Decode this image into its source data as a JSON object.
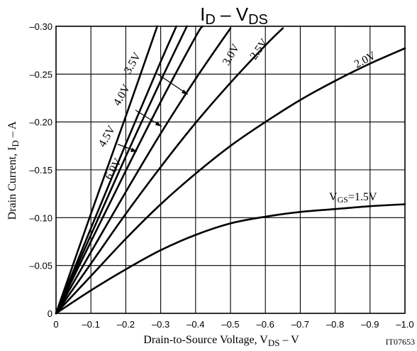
{
  "chart_data": {
    "type": "line",
    "title": {
      "main": "I",
      "sub1": "D",
      "mid": " – V",
      "sub2": "DS"
    },
    "xlabel": {
      "main": "Drain-to-Source Voltage, V",
      "sub": "DS",
      "tail": " – V"
    },
    "ylabel": {
      "main": "Drain Current, I",
      "sub": "D",
      "tail": " – A"
    },
    "figure_id": "IT07653",
    "xlim": [
      0,
      -1.0
    ],
    "ylim": [
      0,
      -0.3
    ],
    "grid": true,
    "xticks": [
      {
        "v": 0,
        "label": "0"
      },
      {
        "v": -0.1,
        "label": "–0.1"
      },
      {
        "v": -0.2,
        "label": "–0.2"
      },
      {
        "v": -0.3,
        "label": "–0.3"
      },
      {
        "v": -0.4,
        "label": "–0.4"
      },
      {
        "v": -0.5,
        "label": "–0.5"
      },
      {
        "v": -0.6,
        "label": "–0.6"
      },
      {
        "v": -0.7,
        "label": "–0.7"
      },
      {
        "v": -0.8,
        "label": "–0.8"
      },
      {
        "v": -0.9,
        "label": "–0.9"
      },
      {
        "v": -1.0,
        "label": "–1.0"
      }
    ],
    "yticks": [
      {
        "v": 0,
        "label": "0"
      },
      {
        "v": -0.05,
        "label": "–0.05"
      },
      {
        "v": -0.1,
        "label": "–0.10"
      },
      {
        "v": -0.15,
        "label": "–0.15"
      },
      {
        "v": -0.2,
        "label": "–0.20"
      },
      {
        "v": -0.25,
        "label": "–0.25"
      },
      {
        "v": -0.3,
        "label": "–0.30"
      }
    ],
    "series": [
      {
        "name": "1.5V",
        "points": [
          [
            0,
            0
          ],
          [
            -0.1,
            -0.024
          ],
          [
            -0.2,
            -0.046
          ],
          [
            -0.3,
            -0.066
          ],
          [
            -0.4,
            -0.082
          ],
          [
            -0.5,
            -0.094
          ],
          [
            -0.6,
            -0.101
          ],
          [
            -0.7,
            -0.106
          ],
          [
            -0.8,
            -0.109
          ],
          [
            -0.9,
            -0.112
          ],
          [
            -1.0,
            -0.114
          ]
        ]
      },
      {
        "name": "2.0V",
        "points": [
          [
            0,
            0
          ],
          [
            -0.1,
            -0.039
          ],
          [
            -0.2,
            -0.078
          ],
          [
            -0.3,
            -0.114
          ],
          [
            -0.4,
            -0.146
          ],
          [
            -0.5,
            -0.175
          ],
          [
            -0.6,
            -0.2
          ],
          [
            -0.7,
            -0.223
          ],
          [
            -0.8,
            -0.243
          ],
          [
            -0.9,
            -0.261
          ],
          [
            -1.0,
            -0.277
          ]
        ]
      },
      {
        "name": "2.5V",
        "points": [
          [
            0,
            0
          ],
          [
            -0.1,
            -0.052
          ],
          [
            -0.2,
            -0.104
          ],
          [
            -0.3,
            -0.153
          ],
          [
            -0.4,
            -0.199
          ],
          [
            -0.5,
            -0.241
          ],
          [
            -0.6,
            -0.28
          ],
          [
            -0.65,
            -0.298
          ]
        ]
      },
      {
        "name": "3.0V",
        "points": [
          [
            0,
            0
          ],
          [
            -0.1,
            -0.064
          ],
          [
            -0.2,
            -0.127
          ],
          [
            -0.3,
            -0.188
          ],
          [
            -0.4,
            -0.245
          ],
          [
            -0.5,
            -0.298
          ]
        ]
      },
      {
        "name": "3.5V",
        "points": [
          [
            0,
            0
          ],
          [
            -0.1,
            -0.075
          ],
          [
            -0.2,
            -0.149
          ],
          [
            -0.3,
            -0.221
          ],
          [
            -0.4,
            -0.289
          ],
          [
            -0.42,
            -0.3
          ]
        ]
      },
      {
        "name": "4.0V",
        "points": [
          [
            0,
            0
          ],
          [
            -0.1,
            -0.082
          ],
          [
            -0.2,
            -0.164
          ],
          [
            -0.3,
            -0.243
          ],
          [
            -0.375,
            -0.3
          ]
        ]
      },
      {
        "name": "4.5V",
        "points": [
          [
            0,
            0
          ],
          [
            -0.1,
            -0.089
          ],
          [
            -0.2,
            -0.177
          ],
          [
            -0.3,
            -0.263
          ],
          [
            -0.345,
            -0.3
          ]
        ]
      },
      {
        "name": "6.0V",
        "points": [
          [
            0,
            0
          ],
          [
            -0.1,
            -0.104
          ],
          [
            -0.2,
            -0.206
          ],
          [
            -0.29,
            -0.3
          ]
        ]
      }
    ],
    "annotations": [
      {
        "text": "V",
        "sub": "GS",
        "tail": "=1.5V"
      },
      {
        "text": "2.0V"
      },
      {
        "text": "2.5V"
      },
      {
        "text": "3.0V"
      },
      {
        "text": "3.5V"
      },
      {
        "text": "4.0V"
      },
      {
        "text": "4.5V"
      },
      {
        "text": "6.0V"
      }
    ]
  }
}
